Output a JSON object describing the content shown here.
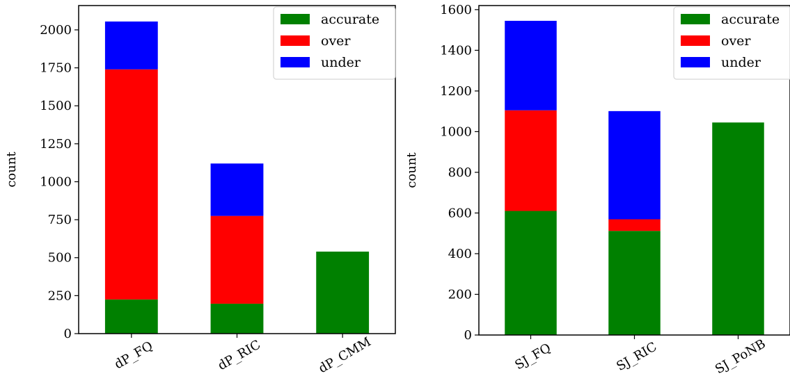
{
  "chart_data": [
    {
      "type": "bar",
      "stacked": true,
      "categories": [
        "dP_FQ",
        "dP_RIC",
        "dP_CMM"
      ],
      "series": [
        {
          "name": "accurate",
          "color": "#008000",
          "values": [
            225,
            197,
            540
          ]
        },
        {
          "name": "over",
          "color": "#ff0000",
          "values": [
            1515,
            578,
            0
          ]
        },
        {
          "name": "under",
          "color": "#0000ff",
          "values": [
            315,
            345,
            0
          ]
        }
      ],
      "ylabel": "count",
      "xlabel": "",
      "ylim": [
        0,
        2160
      ],
      "yticks": [
        0,
        250,
        500,
        750,
        1000,
        1250,
        1500,
        1750,
        2000
      ],
      "ytick_labels": [
        "0",
        "250",
        "500",
        "750",
        "1000",
        "1250",
        "1500",
        "1750",
        "2000"
      ],
      "grid": false,
      "legend_position": "top-right"
    },
    {
      "type": "bar",
      "stacked": true,
      "categories": [
        "SJ_FQ",
        "SJ_RIC",
        "SJ_PoNB"
      ],
      "series": [
        {
          "name": "accurate",
          "color": "#008000",
          "values": [
            610,
            512,
            1045
          ]
        },
        {
          "name": "over",
          "color": "#ff0000",
          "values": [
            495,
            57,
            0
          ]
        },
        {
          "name": "under",
          "color": "#0000ff",
          "values": [
            440,
            532,
            0
          ]
        }
      ],
      "ylabel": "count",
      "xlabel": "",
      "ylim": [
        0,
        1620
      ],
      "yticks": [
        0,
        200,
        400,
        600,
        800,
        1000,
        1200,
        1400,
        1600
      ],
      "ytick_labels": [
        "0",
        "200",
        "400",
        "600",
        "800",
        "1000",
        "1200",
        "1400",
        "1600"
      ],
      "grid": false,
      "legend_position": "top-right"
    }
  ]
}
